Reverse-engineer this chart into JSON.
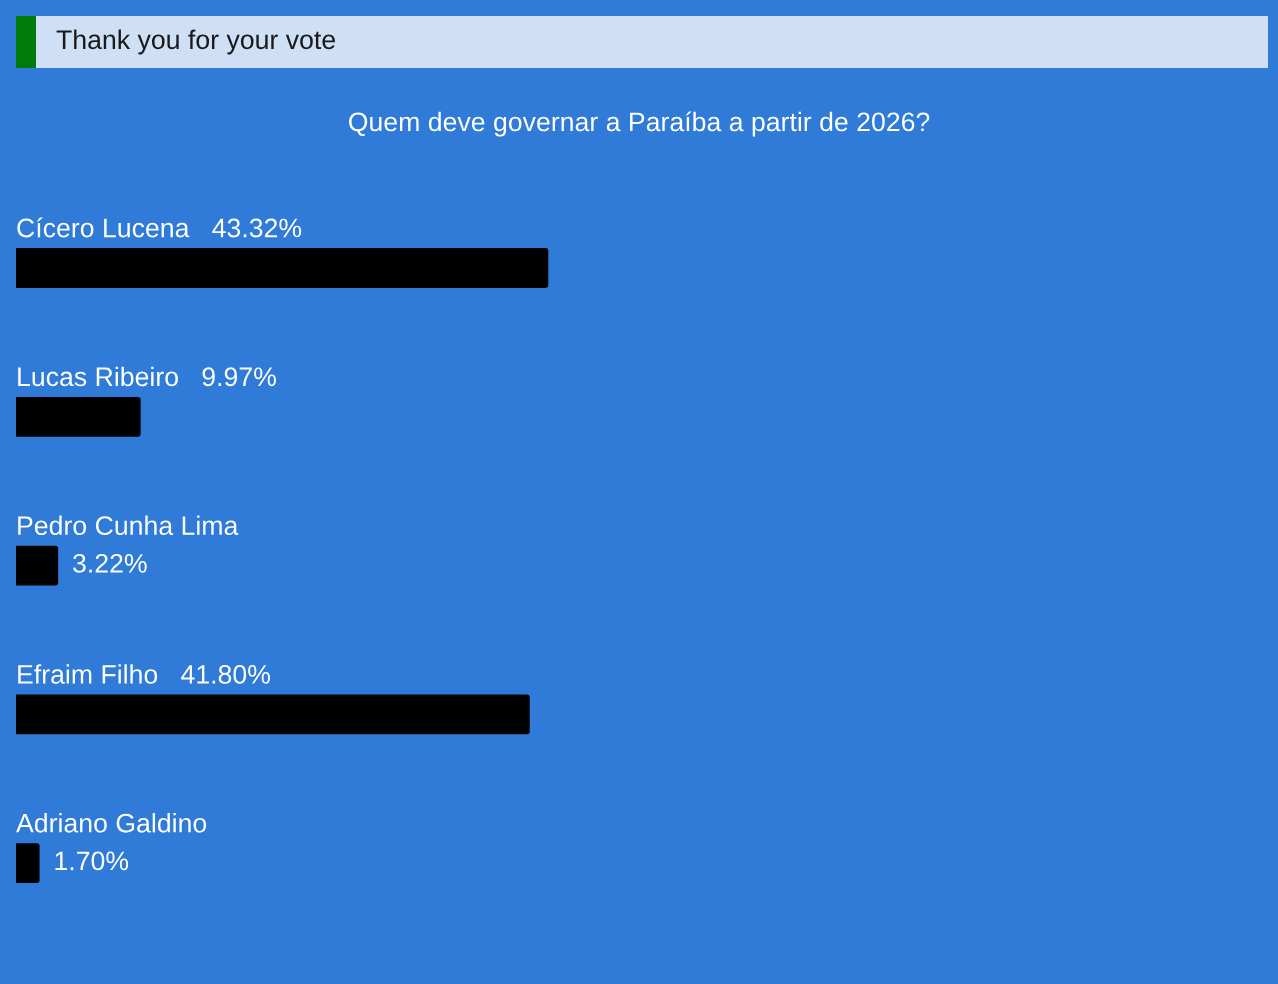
{
  "chart_data": {
    "type": "bar",
    "orientation": "horizontal",
    "title": "Quem deve governar a Paraíba a partir de 2026?",
    "annotations": [
      "Thank you for your vote"
    ],
    "categories": [
      "Cícero Lucena",
      "Lucas Ribeiro",
      "Pedro Cunha Lima",
      "Efraim Filho",
      "Adriano Galdino"
    ],
    "values": [
      43.32,
      9.97,
      3.22,
      41.8,
      1.7
    ],
    "value_labels": [
      "43.32%",
      "9.97%",
      "3.22%",
      "41.80%",
      "1.70%"
    ],
    "color": "#000000",
    "tick_labels": "y"
  }
}
